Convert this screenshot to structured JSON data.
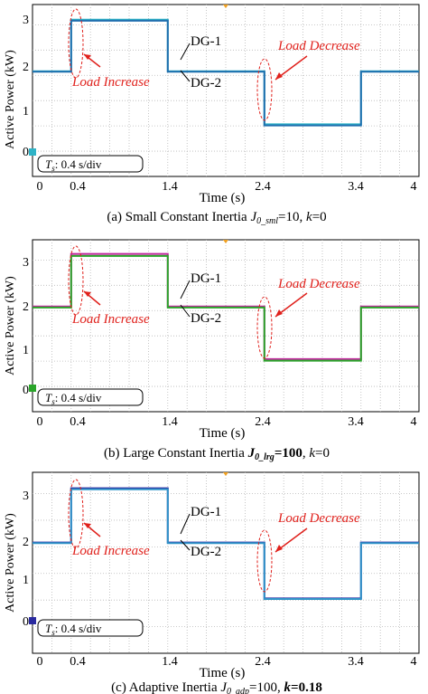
{
  "colors": {
    "grid": "#b8b8b8",
    "axis": "#000000",
    "annotation_red": "#e0211c",
    "dg1_a": "#2fb3c7",
    "dg2_a": "#1f6fae",
    "dg1_b": "#c0269c",
    "dg2_b": "#2aa52a",
    "dg1_c": "#2a2aa0",
    "dg2_c": "#2f93c8"
  },
  "chart_data": [
    {
      "type": "line",
      "caption_parts": [
        "(a) Small Constant Inertia ",
        "J",
        "0_sml",
        "=10, ",
        "k",
        "=0"
      ],
      "ylabel": "Active Power  (kW)",
      "xlabel": "Time (s)",
      "xlim": [
        0,
        4
      ],
      "ylim": [
        0,
        3.4
      ],
      "xticks": [
        "0",
        "0.4",
        "1.4",
        "2.4",
        "3.4",
        "4"
      ],
      "yticks": [
        "0",
        "1",
        "2",
        "3"
      ],
      "timebase_parts": [
        "T",
        "s",
        ": 0.4 s/div"
      ],
      "annotations": {
        "increase": "Load Increase",
        "decrease": "Load Decrease"
      },
      "series": [
        {
          "name": "DG-1",
          "color": "#2fb3c7",
          "x": [
            0,
            0.4,
            0.4,
            1.4,
            1.4,
            2.4,
            2.4,
            3.4,
            3.4,
            4
          ],
          "y": [
            2.08,
            2.08,
            3.1,
            3.1,
            2.08,
            2.08,
            1.03,
            1.03,
            2.08,
            2.08
          ]
        },
        {
          "name": "DG-2",
          "color": "#1f6fae",
          "x": [
            0,
            0.4,
            0.4,
            1.4,
            1.4,
            2.4,
            2.4,
            3.4,
            3.4,
            4
          ],
          "y": [
            2.07,
            2.07,
            3.08,
            3.08,
            2.07,
            2.07,
            1.01,
            1.01,
            2.07,
            2.07
          ]
        }
      ]
    },
    {
      "type": "line",
      "caption_parts": [
        "(b) Large  Constant Inertia ",
        "J",
        "0_lrg",
        "=100",
        ", ",
        "k",
        "=0"
      ],
      "ylabel": "Active Power  (kW)",
      "xlabel": "Time (s)",
      "xlim": [
        0,
        4
      ],
      "ylim": [
        0,
        3.4
      ],
      "xticks": [
        "0",
        "0.4",
        "1.4",
        "2.4",
        "3.4",
        "4"
      ],
      "yticks": [
        "0",
        "1",
        "2",
        "3"
      ],
      "timebase_parts": [
        "T",
        "s",
        ": 0.4 s/div"
      ],
      "annotations": {
        "increase": "Load Increase",
        "decrease": "Load Decrease"
      },
      "series": [
        {
          "name": "DG-1",
          "color": "#c0269c",
          "x": [
            0,
            0.4,
            0.4,
            1.4,
            1.4,
            2.4,
            2.4,
            3.4,
            3.4,
            4
          ],
          "y": [
            2.08,
            2.08,
            3.12,
            3.12,
            2.08,
            2.08,
            1.04,
            1.04,
            2.08,
            2.08
          ]
        },
        {
          "name": "DG-2",
          "color": "#2aa52a",
          "x": [
            0,
            0.4,
            0.4,
            1.4,
            1.4,
            2.4,
            2.4,
            3.4,
            3.4,
            4
          ],
          "y": [
            2.06,
            2.06,
            3.08,
            3.08,
            2.06,
            2.06,
            1.01,
            1.01,
            2.06,
            2.06
          ]
        }
      ]
    },
    {
      "type": "line",
      "caption_parts": [
        "(c)  Adaptive Inertia ",
        "J",
        "0_adp",
        "=100, ",
        "k",
        "=0.18"
      ],
      "ylabel": "Active Power  (kW)",
      "xlabel": "Time (s)",
      "xlim": [
        0,
        4
      ],
      "ylim": [
        0,
        3.4
      ],
      "xticks": [
        "0",
        "0.4",
        "1.4",
        "2.4",
        "3.4",
        "4"
      ],
      "yticks": [
        "0",
        "1",
        "2",
        "3"
      ],
      "timebase_parts": [
        "T",
        "s",
        ": 0.4 s/div"
      ],
      "annotations": {
        "increase": "Load Increase",
        "decrease": "Load Decrease"
      },
      "series": [
        {
          "name": "DG-1",
          "color": "#2a2aa0",
          "x": [
            0,
            0.4,
            0.4,
            1.4,
            1.4,
            2.4,
            2.4,
            3.4,
            3.4,
            4
          ],
          "y": [
            2.08,
            2.08,
            3.1,
            3.1,
            2.08,
            2.08,
            1.03,
            1.03,
            2.08,
            2.08
          ]
        },
        {
          "name": "DG-2",
          "color": "#2f93c8",
          "x": [
            0,
            0.4,
            0.4,
            1.4,
            1.4,
            2.4,
            2.4,
            3.4,
            3.4,
            4
          ],
          "y": [
            2.07,
            2.07,
            3.08,
            3.08,
            2.07,
            2.07,
            1.02,
            1.02,
            2.07,
            2.07
          ]
        }
      ]
    }
  ]
}
